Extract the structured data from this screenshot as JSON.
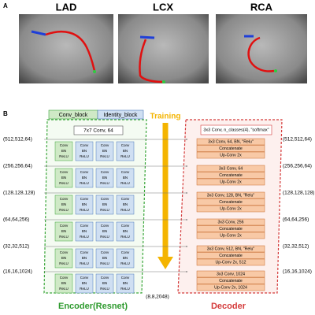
{
  "panel_a": {
    "label": "A",
    "images": [
      {
        "title": "LAD"
      },
      {
        "title": "LCX"
      },
      {
        "title": "RCA"
      }
    ]
  },
  "panel_b": {
    "label": "B",
    "legend": [
      "Conv_block",
      "Identity_block"
    ],
    "first_layer": "7x7 Conv, 64",
    "training": "Training",
    "block_layers": [
      "Conv",
      "BN",
      "ReLU"
    ],
    "encoder_shapes": [
      "(512,512,64)",
      "(256,256,64)",
      "(128,128,128)",
      "(64,64,256)",
      "(32,32,512)",
      "(16,16,1024)"
    ],
    "bottleneck_shape": "(8,8,2048)",
    "decoder_shapes": [
      "(512,512,64)",
      "(256,256,64)",
      "(128,128,128)",
      "(64,64,256)",
      "(32,32,512)",
      "(16,16,1024)"
    ],
    "output_layer": "3x3 Conv, n_classes(4), \"softmax\"",
    "decoder_groups": [
      [
        "3x3 Conv, 64, BN, \"Relu\"",
        "Concatenate",
        "Up-Conv 2x"
      ],
      [
        "3x3 Conv, 64",
        "Concatenate",
        "Up-Conv 2x"
      ],
      [
        "3x3 Conv, 128, BN, \"Relu\"",
        "Concatenate",
        "Up-Conv 2x"
      ],
      [
        "3x3 Conv, 256",
        "Concatenate",
        "Up-Conv 2x"
      ],
      [
        "3x3 Conv, 512, BN, \"Relu\"",
        "Concatenate",
        "Up-Conv 2x, 512"
      ],
      [
        "3x3 Conv, 1024",
        "Concatenate",
        "Up-Conv 2x, 1024"
      ]
    ],
    "encoder_title": "Encoder(Resnet)",
    "decoder_title": "Decoder"
  }
}
